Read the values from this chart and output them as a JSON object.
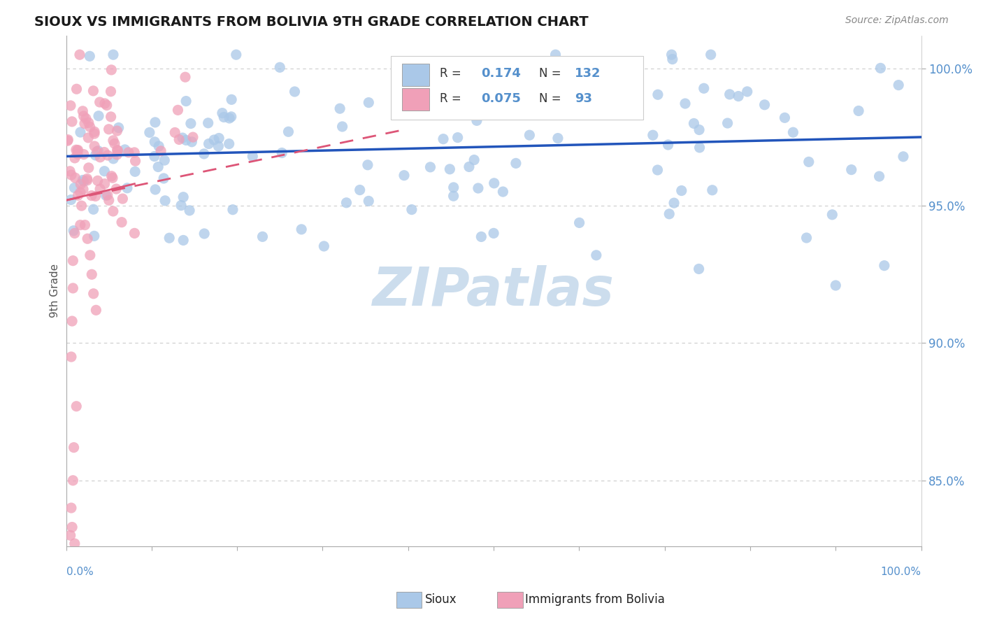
{
  "title": "SIOUX VS IMMIGRANTS FROM BOLIVIA 9TH GRADE CORRELATION CHART",
  "source_text": "Source: ZipAtlas.com",
  "ylabel": "9th Grade",
  "y_ticks": [
    0.85,
    0.9,
    0.95,
    1.0
  ],
  "y_tick_labels": [
    "85.0%",
    "90.0%",
    "95.0%",
    "100.0%"
  ],
  "xlim": [
    0.0,
    1.0
  ],
  "ylim": [
    0.826,
    1.012
  ],
  "blue_R": 0.174,
  "blue_N": 132,
  "pink_R": 0.075,
  "pink_N": 93,
  "blue_color": "#aac8e8",
  "pink_color": "#f0a0b8",
  "blue_line_color": "#2255bb",
  "pink_line_color": "#dd5577",
  "title_color": "#1a1a1a",
  "axis_label_color": "#5590cc",
  "watermark_color": "#ccdded",
  "grid_color": "#cccccc",
  "blue_seed": 101,
  "pink_seed": 202
}
